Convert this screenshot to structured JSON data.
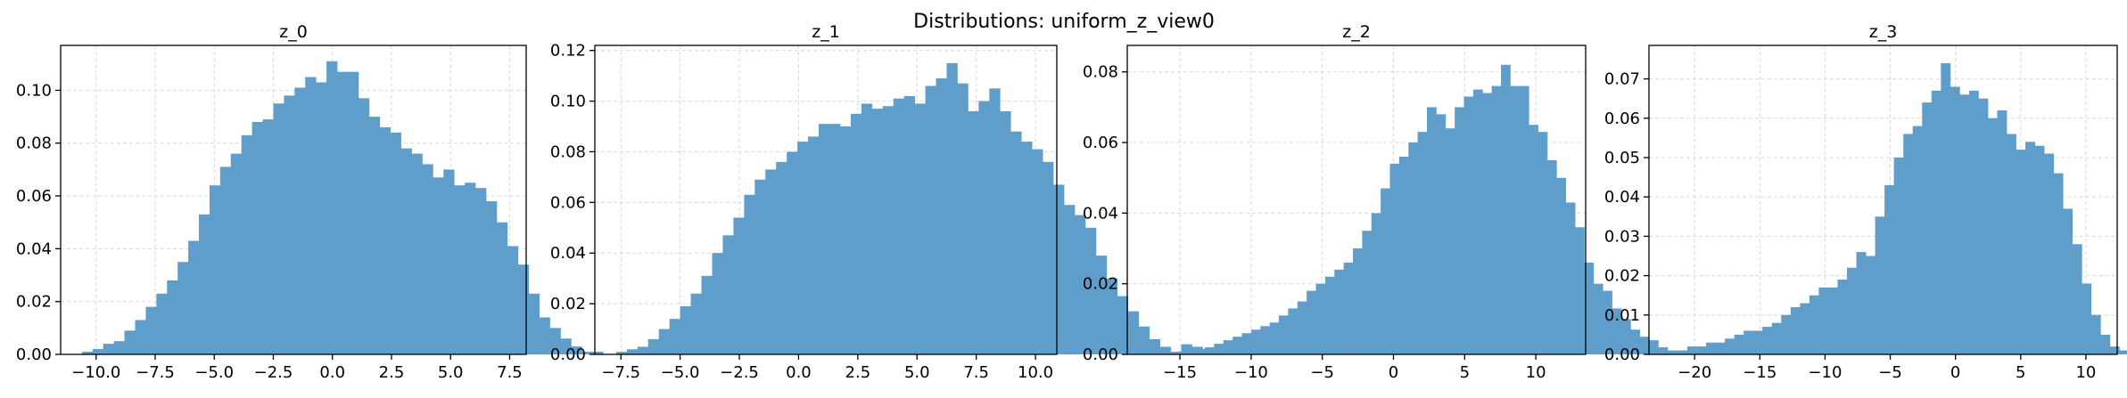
{
  "suptitle": "Distributions: uniform_z_view0",
  "colors": {
    "bar": "#5f9ecb",
    "grid": "#d9d9d9",
    "axis": "#000000"
  },
  "chart_data": [
    {
      "type": "bar",
      "title": "z_0",
      "xlim": [
        -11.5,
        8.2
      ],
      "ylim": [
        0,
        0.117
      ],
      "xticks": [
        -10.0,
        -7.5,
        -5.0,
        -2.5,
        0.0,
        2.5,
        5.0,
        7.5
      ],
      "xtick_labels": [
        "−10.0",
        "−7.5",
        "−5.0",
        "−2.5",
        "0.0",
        "2.5",
        "5.0",
        "7.5"
      ],
      "yticks": [
        0,
        0.02,
        0.04,
        0.06,
        0.08,
        0.1
      ],
      "ytick_labels": [
        "0.00",
        "0.02",
        "0.04",
        "0.06",
        "0.08",
        "0.10"
      ],
      "bin_start": -10.6,
      "bin_width": 0.45,
      "values": [
        0.001,
        0.002,
        0.004,
        0.005,
        0.009,
        0.013,
        0.018,
        0.023,
        0.028,
        0.035,
        0.043,
        0.053,
        0.064,
        0.071,
        0.076,
        0.083,
        0.088,
        0.089,
        0.095,
        0.098,
        0.101,
        0.105,
        0.103,
        0.111,
        0.107,
        0.107,
        0.097,
        0.09,
        0.086,
        0.084,
        0.078,
        0.076,
        0.072,
        0.067,
        0.07,
        0.064,
        0.065,
        0.063,
        0.058,
        0.05,
        0.041,
        0.034,
        0.023,
        0.014,
        0.01,
        0.006,
        0.003,
        0.001,
        0.001
      ]
    },
    {
      "type": "bar",
      "title": "z_1",
      "xlim": [
        -8.6,
        10.9
      ],
      "ylim": [
        0,
        0.122
      ],
      "xticks": [
        -7.5,
        -5.0,
        -2.5,
        0.0,
        2.5,
        5.0,
        7.5,
        10.0
      ],
      "xtick_labels": [
        "−7.5",
        "−5.0",
        "−2.5",
        "0.0",
        "2.5",
        "5.0",
        "7.5",
        "10.0"
      ],
      "yticks": [
        0,
        0.02,
        0.04,
        0.06,
        0.08,
        0.1,
        0.12
      ],
      "ytick_labels": [
        "0.00",
        "0.02",
        "0.04",
        "0.06",
        "0.08",
        "0.10",
        "0.12"
      ],
      "bin_start": -7.7,
      "bin_width": 0.45,
      "values": [
        0.001,
        0.002,
        0.003,
        0.006,
        0.01,
        0.014,
        0.019,
        0.024,
        0.031,
        0.04,
        0.047,
        0.054,
        0.063,
        0.069,
        0.073,
        0.076,
        0.08,
        0.084,
        0.086,
        0.091,
        0.091,
        0.09,
        0.095,
        0.099,
        0.097,
        0.098,
        0.101,
        0.102,
        0.099,
        0.106,
        0.109,
        0.115,
        0.107,
        0.096,
        0.1,
        0.105,
        0.096,
        0.088,
        0.084,
        0.081,
        0.076,
        0.067,
        0.059,
        0.055,
        0.05,
        0.039,
        0.03,
        0.023,
        0.017,
        0.011,
        0.006,
        0.003,
        0.001,
        0.004,
        0.003,
        0.001,
        0.001
      ]
    },
    {
      "type": "bar",
      "title": "z_2",
      "xlim": [
        -18.7,
        13.5
      ],
      "ylim": [
        0,
        0.0875
      ],
      "xticks": [
        -15,
        -10,
        -5,
        0,
        5,
        10
      ],
      "xtick_labels": [
        "−15",
        "−10",
        "−5",
        "0",
        "5",
        "10"
      ],
      "yticks": [
        0,
        0.02,
        0.04,
        0.06,
        0.08
      ],
      "ytick_labels": [
        "0.00",
        "0.02",
        "0.04",
        "0.06",
        "0.08"
      ],
      "bin_start": -17.8,
      "bin_width": 0.65,
      "values": [
        0.0005,
        0.0005,
        0.0005,
        0.0007,
        0.0008,
        0.001,
        0.0015,
        0.002,
        0.003,
        0.004,
        0.005,
        0.006,
        0.007,
        0.008,
        0.009,
        0.011,
        0.013,
        0.015,
        0.018,
        0.02,
        0.022,
        0.024,
        0.026,
        0.03,
        0.035,
        0.04,
        0.047,
        0.054,
        0.056,
        0.06,
        0.063,
        0.07,
        0.068,
        0.064,
        0.07,
        0.073,
        0.075,
        0.074,
        0.076,
        0.082,
        0.076,
        0.076,
        0.065,
        0.063,
        0.055,
        0.05,
        0.043,
        0.036,
        0.026,
        0.02,
        0.018,
        0.013,
        0.01,
        0.007,
        0.005,
        0.004,
        0.002,
        0.001,
        0.001
      ]
    },
    {
      "type": "bar",
      "title": "z_3",
      "xlim": [
        -23.5,
        12.4
      ],
      "ylim": [
        0,
        0.0785
      ],
      "xticks": [
        -20,
        -15,
        -10,
        -5,
        0,
        5,
        10
      ],
      "xtick_labels": [
        "−20",
        "−15",
        "−10",
        "−5",
        "0",
        "5",
        "10"
      ],
      "yticks": [
        0,
        0.01,
        0.02,
        0.03,
        0.04,
        0.05,
        0.06,
        0.07
      ],
      "ytick_labels": [
        "0.00",
        "0.01",
        "0.02",
        "0.03",
        "0.04",
        "0.05",
        "0.06",
        "0.07"
      ],
      "bin_start": -22.0,
      "bin_width": 0.72,
      "values": [
        0.001,
        0.001,
        0.002,
        0.002,
        0.003,
        0.003,
        0.004,
        0.005,
        0.006,
        0.006,
        0.007,
        0.008,
        0.01,
        0.012,
        0.013,
        0.015,
        0.017,
        0.017,
        0.019,
        0.022,
        0.026,
        0.025,
        0.035,
        0.043,
        0.05,
        0.056,
        0.058,
        0.064,
        0.067,
        0.074,
        0.068,
        0.066,
        0.067,
        0.065,
        0.06,
        0.062,
        0.056,
        0.052,
        0.054,
        0.053,
        0.051,
        0.046,
        0.037,
        0.028,
        0.018,
        0.01,
        0.005,
        0.002,
        0.001
      ]
    }
  ]
}
